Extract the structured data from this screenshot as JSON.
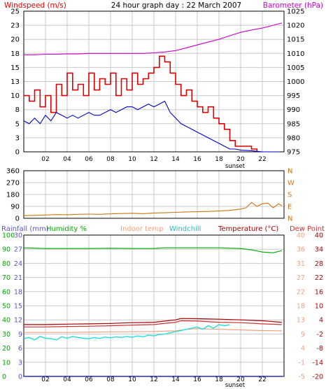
{
  "title": "24 hour graph day : 22 March 2007",
  "sunset_label": "sunset",
  "hour_ticks": [
    "02",
    "04",
    "06",
    "08",
    "10",
    "12",
    "14",
    "16",
    "18",
    "20",
    "22"
  ],
  "colors": {
    "windspeed": "#dd0000",
    "gust": "#dd0000",
    "avg_wind": "#0000cc",
    "barometer": "#cc00cc",
    "direction": "#cc7711",
    "rainfall": "#5555cc",
    "humidity": "#00aa00",
    "indoor": "#f5a080",
    "windchill": "#22dddd",
    "temperature": "#aa0000",
    "dewpoint": "#cc3333",
    "rain_line": "#0000aa",
    "grid": "#c8c8c8",
    "text": "#000000"
  },
  "chart_data": [
    {
      "type": "line",
      "name": "wind-barometer-panel",
      "labels": {
        "left": "Windspeed (m/s)",
        "right": "Barometer (hPa)"
      },
      "x_range": [
        0,
        24
      ],
      "left_axis": {
        "ticks": [
          0,
          3,
          5,
          8,
          10,
          13,
          15,
          18,
          20,
          23,
          25
        ],
        "range": [
          0,
          25
        ]
      },
      "right_axis": {
        "ticks": [
          975,
          980,
          985,
          990,
          995,
          1000,
          1005,
          1010,
          1015,
          1020,
          1025
        ],
        "range": [
          975,
          1025
        ]
      },
      "grid": true,
      "series": [
        {
          "key": "gust",
          "axis": "left",
          "x": [
            0.0,
            0.5,
            1.0,
            1.5,
            2.0,
            2.5,
            3.0,
            3.5,
            4.0,
            4.5,
            5.0,
            5.5,
            6.0,
            6.5,
            7.0,
            7.5,
            8.0,
            8.5,
            9.0,
            9.5,
            10.0,
            10.5,
            11.0,
            11.5,
            12.0,
            12.5,
            13.0,
            13.5,
            14.0,
            14.5,
            15.0,
            15.5,
            16.0,
            16.5,
            17.0,
            17.5,
            18.0,
            18.5,
            19.0,
            19.5,
            20.0,
            20.5,
            21.0,
            21.5
          ],
          "y": [
            10,
            9,
            11,
            8,
            10,
            7,
            12,
            10,
            14,
            11,
            12,
            10,
            14,
            11,
            13,
            12,
            14,
            10,
            13,
            11,
            14,
            12,
            13,
            14,
            15,
            17,
            16,
            14,
            12,
            10,
            11,
            9,
            8,
            7,
            8,
            6,
            5,
            4,
            2,
            1,
            1,
            1,
            0.5,
            0
          ]
        },
        {
          "key": "avg_wind",
          "axis": "left",
          "x": [
            0.0,
            0.5,
            1.0,
            1.5,
            2.0,
            2.5,
            3.0,
            3.5,
            4.0,
            4.5,
            5.0,
            5.5,
            6.0,
            6.5,
            7.0,
            7.5,
            8.0,
            8.5,
            9.0,
            9.5,
            10.0,
            10.5,
            11.0,
            11.5,
            12.0,
            12.5,
            13.0,
            13.5,
            14.0,
            14.5,
            15.0,
            15.5,
            16.0,
            16.5,
            17.0,
            17.5,
            18.0,
            18.5,
            19.0,
            19.5,
            20.0,
            21.0,
            22.0,
            23.5
          ],
          "y": [
            5.5,
            5,
            6,
            5,
            6.5,
            5.5,
            7,
            6.5,
            6,
            6.5,
            6,
            6.5,
            7,
            6.5,
            6.5,
            7,
            7.5,
            7,
            7.5,
            8,
            8,
            7.5,
            8,
            8.5,
            8,
            8.5,
            9,
            7,
            6,
            5,
            4.5,
            4,
            3.5,
            3,
            2.5,
            2,
            1.5,
            1,
            0.5,
            0.5,
            0.3,
            0.2,
            0,
            0
          ]
        },
        {
          "key": "barometer",
          "axis": "right",
          "x": [
            0,
            1,
            2,
            3,
            4,
            5,
            6,
            7,
            8,
            9,
            10,
            11,
            12,
            13,
            14,
            15,
            16,
            17,
            18,
            19,
            20,
            21,
            22,
            23,
            23.8
          ],
          "y": [
            1009.5,
            1009.5,
            1009.7,
            1009.7,
            1009.8,
            1009.8,
            1010,
            1010,
            1010,
            1010,
            1010,
            1010,
            1010.2,
            1010.5,
            1011,
            1012,
            1013,
            1014,
            1015,
            1016.3,
            1017.5,
            1018.3,
            1019,
            1020,
            1020.8
          ]
        }
      ]
    },
    {
      "type": "line",
      "name": "wind-direction-panel",
      "x_range": [
        0,
        24
      ],
      "left_axis": {
        "ticks": [
          0,
          90,
          180,
          270,
          360
        ],
        "range": [
          0,
          360
        ]
      },
      "right_axis": {
        "ticks": [
          "N",
          "E",
          "S",
          "W",
          "N"
        ]
      },
      "grid": true,
      "series": [
        {
          "key": "direction",
          "axis": "left",
          "x": [
            0,
            1,
            2,
            3,
            4,
            5,
            6,
            7,
            8,
            9,
            10,
            11,
            12,
            13,
            14,
            15,
            16,
            17,
            18,
            19,
            20,
            20.5,
            21,
            21.5,
            22,
            22.5,
            23,
            23.5,
            23.8
          ],
          "y": [
            20,
            22,
            25,
            28,
            27,
            30,
            32,
            30,
            34,
            36,
            38,
            35,
            40,
            42,
            45,
            48,
            50,
            52,
            55,
            60,
            70,
            80,
            120,
            90,
            110,
            115,
            80,
            110,
            95
          ]
        }
      ]
    },
    {
      "type": "line",
      "name": "temperature-humidity-panel",
      "labels": {
        "rainfall": "Rainfall (mm)",
        "humidity": "Humidity %",
        "indoor": "Indoor temp",
        "windchill": "Windchill",
        "temperature": "Temperature (°C)",
        "dewpoint": "Dew Point"
      },
      "x_range": [
        0,
        24
      ],
      "rain_axis": {
        "ticks": [
          0,
          3,
          6,
          9,
          12,
          15,
          18,
          21,
          24,
          27,
          30
        ],
        "range": [
          0,
          30
        ]
      },
      "humidity_axis": {
        "ticks": [
          0,
          10,
          20,
          30,
          40,
          50,
          60,
          70,
          80,
          90,
          100
        ],
        "range": [
          0,
          100
        ]
      },
      "indoor_axis": {
        "ticks": [
          -5,
          -1,
          4,
          9,
          13,
          18,
          22,
          27,
          31,
          36,
          40
        ],
        "range": [
          -5,
          40
        ]
      },
      "temp_axis": {
        "ticks": [
          -20,
          -14,
          -8,
          -2,
          4,
          10,
          16,
          22,
          28,
          34,
          40
        ],
        "range": [
          -20,
          40
        ]
      },
      "grid": true,
      "series": [
        {
          "key": "humidity",
          "axis": "humidity",
          "x": [
            0,
            2,
            4,
            6,
            8,
            10,
            12,
            13,
            14,
            16,
            18,
            20,
            21,
            22,
            23,
            23.8
          ],
          "y": [
            91,
            90.5,
            90.5,
            90.5,
            90.7,
            90.5,
            90.5,
            91,
            91,
            91,
            91,
            90.5,
            89.5,
            88,
            87.5,
            89
          ]
        },
        {
          "key": "indoor",
          "axis": "indoor",
          "x": [
            0,
            4,
            8,
            12,
            14,
            15,
            16,
            18,
            20,
            22,
            23.8
          ],
          "y": [
            9,
            9,
            9.2,
            9.3,
            9.5,
            10,
            10.2,
            10,
            9.8,
            9.6,
            9.5
          ]
        },
        {
          "key": "temperature",
          "axis": "temp",
          "x": [
            0,
            2,
            4,
            6,
            8,
            10,
            12,
            14,
            14.5,
            16,
            18,
            20,
            22,
            23.8
          ],
          "y": [
            2,
            2,
            2.2,
            2.3,
            2.5,
            2.8,
            3,
            4,
            4.6,
            4.5,
            4.3,
            4,
            3.6,
            3
          ]
        },
        {
          "key": "dewpoint",
          "axis": "temp",
          "x": [
            0,
            2,
            4,
            6,
            8,
            10,
            12,
            14,
            14.5,
            16,
            18,
            20,
            22,
            23.8
          ],
          "y": [
            1,
            1,
            1.2,
            1.3,
            1.5,
            1.8,
            2,
            3,
            3.6,
            3.5,
            3,
            2.8,
            2.3,
            2
          ]
        },
        {
          "key": "windchill",
          "axis": "temp",
          "x": [
            0,
            0.5,
            1,
            1.5,
            2,
            2.5,
            3,
            3.5,
            4,
            4.5,
            5,
            5.5,
            6,
            6.5,
            7,
            7.5,
            8,
            8.5,
            9,
            9.5,
            10,
            10.5,
            11,
            11.5,
            12,
            12.5,
            13,
            13.5,
            14,
            14.5,
            15,
            15.5,
            16,
            16.5,
            17,
            17.5,
            18,
            18.5,
            19
          ],
          "y": [
            -4,
            -3.5,
            -4.5,
            -3,
            -3.8,
            -4,
            -4.5,
            -3.2,
            -3.8,
            -3,
            -3.5,
            -3.8,
            -4,
            -3.5,
            -3.9,
            -3.3,
            -3.6,
            -3.2,
            -3.5,
            -3,
            -3.4,
            -2.8,
            -3.2,
            -2.5,
            -2.8,
            -2.2,
            -2,
            -1.5,
            -1,
            -0.5,
            0,
            0.5,
            1,
            0,
            1.5,
            0.5,
            2,
            1.5,
            2
          ]
        },
        {
          "key": "rain_line",
          "axis": "rain",
          "x": [
            0,
            23.8
          ],
          "y": [
            0,
            0
          ]
        }
      ]
    }
  ]
}
